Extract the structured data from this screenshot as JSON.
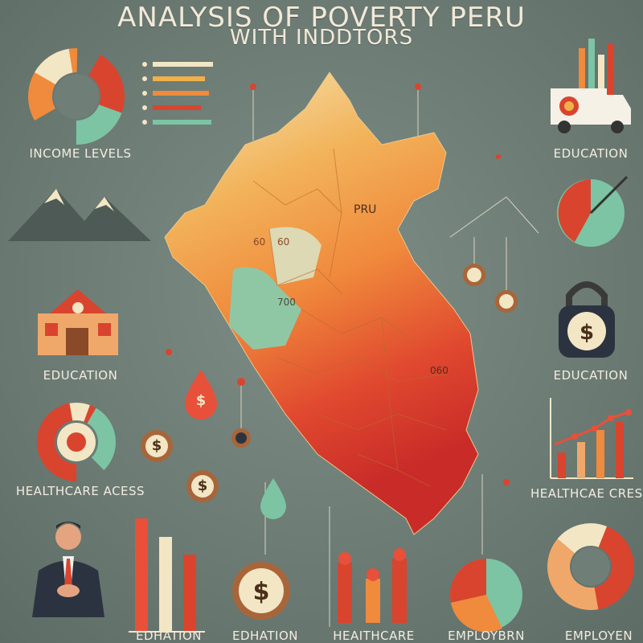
{
  "header": {
    "title_line1": "ANALYSIS OF POVERTY PERU",
    "title_line2": "WITH INDDTORS"
  },
  "map": {
    "country_label": "PRU",
    "region_labels": [
      "60",
      "60",
      "700",
      "060"
    ]
  },
  "labels": {
    "income_levels": "INCOME LEVELS",
    "education_top_right": "EDUCATION",
    "education_left": "EDUCATION",
    "education_right": "EDUCATION",
    "healthcare_access": "HEALTHCARE ACESS",
    "healthcare_right": "HEALTHCAE CRESS",
    "bottom_1": "EDHATION",
    "bottom_2": "EDHATION",
    "bottom_3": "HEAITHCARE",
    "bottom_4": "EMPLOYBRN",
    "bottom_5": "EMPLOYEN"
  },
  "icons": {
    "currency_symbol": "$"
  },
  "colors": {
    "background": "#6f7f78",
    "orange": "#f08a3c",
    "red": "#d9442e",
    "teal": "#7cc4a4",
    "cream": "#f2e6c4",
    "gold": "#f0b04a"
  }
}
